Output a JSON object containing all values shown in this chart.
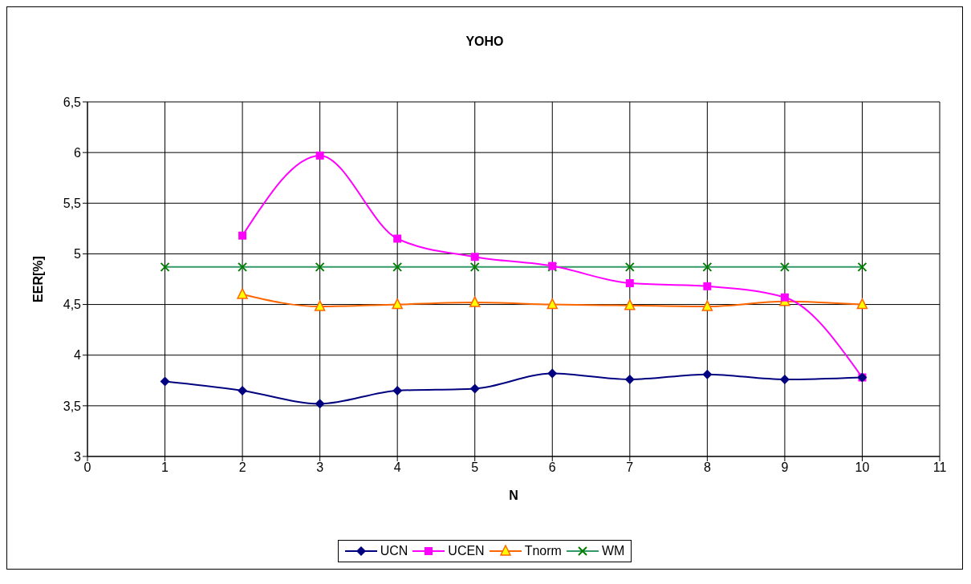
{
  "chart_data": {
    "type": "line",
    "title": "YOHO",
    "xlabel": "N",
    "ylabel": "EER[%]",
    "xlim": [
      0,
      11
    ],
    "xticks": [
      0,
      1,
      2,
      3,
      4,
      5,
      6,
      7,
      8,
      9,
      10,
      11
    ],
    "ylim": [
      3,
      6.5
    ],
    "yticks": [
      3,
      {
        "value": 3.5,
        "label": "3,5"
      },
      4,
      {
        "value": 4.5,
        "label": "4,5"
      },
      5,
      {
        "value": 5.5,
        "label": "5,5"
      },
      6,
      {
        "value": 6.5,
        "label": "6,5"
      }
    ],
    "grid": true,
    "legend": "bottom",
    "line_style": "solid",
    "series": [
      {
        "name": "UCN",
        "color": "#000080",
        "marker": "diamond",
        "x": [
          1,
          2,
          3,
          4,
          5,
          6,
          7,
          8,
          9,
          10
        ],
        "values": [
          3.74,
          3.65,
          3.52,
          3.65,
          3.67,
          3.82,
          3.76,
          3.81,
          3.76,
          3.78
        ]
      },
      {
        "name": "UCEN",
        "color": "#ff00ff",
        "marker": "square",
        "x": [
          2,
          3,
          4,
          5,
          6,
          7,
          8,
          9,
          10
        ],
        "values": [
          5.18,
          5.97,
          5.15,
          4.97,
          4.88,
          4.71,
          4.68,
          4.57,
          3.78
        ]
      },
      {
        "name": "Tnorm",
        "color": "#ff6600",
        "marker": "triangle",
        "x": [
          2,
          3,
          4,
          5,
          6,
          7,
          8,
          9,
          10
        ],
        "values": [
          4.6,
          4.48,
          4.5,
          4.52,
          4.5,
          4.49,
          4.48,
          4.53,
          4.5
        ]
      },
      {
        "name": "WM",
        "color": "#339966",
        "marker": "cross",
        "x": [
          1,
          2,
          3,
          4,
          5,
          6,
          7,
          8,
          9,
          10
        ],
        "values": [
          4.87,
          4.87,
          4.87,
          4.87,
          4.87,
          4.87,
          4.87,
          4.87,
          4.87,
          4.87
        ]
      }
    ]
  }
}
